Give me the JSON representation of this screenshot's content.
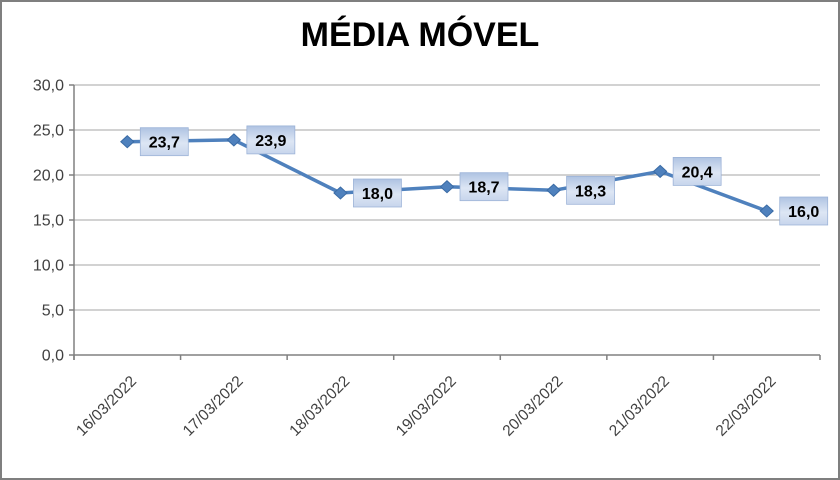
{
  "window": {
    "background": "#ffffff",
    "border_color": "#7f7f7f"
  },
  "chart_data": {
    "type": "line",
    "title": "MÉDIA MÓVEL",
    "categories": [
      "16/03/2022",
      "17/03/2022",
      "18/03/2022",
      "19/03/2022",
      "20/03/2022",
      "21/03/2022",
      "22/03/2022"
    ],
    "values": [
      23.7,
      23.9,
      18.0,
      18.7,
      18.3,
      20.4,
      16.0
    ],
    "data_labels": [
      "23,7",
      "23,9",
      "18,0",
      "18,7",
      "18,3",
      "20,4",
      "16,0"
    ],
    "y_tick_labels": [
      "0,0",
      "5,0",
      "10,0",
      "15,0",
      "20,0",
      "25,0",
      "30,0"
    ],
    "ylim": [
      0,
      30
    ],
    "y_step": 5,
    "xlabel": "",
    "ylabel": "",
    "grid": true,
    "legend": "none",
    "x_label_rotation_deg": -45,
    "colors": {
      "line": "#4F81BD",
      "marker": "#4F81BD",
      "marker_stroke": "#3A6BA5",
      "gridline": "#A6A6A6",
      "axis": "#808080",
      "axis_text": "#404040",
      "title_text": "#000000",
      "label_text": "#000000",
      "label_fill_top": "#AFC3E2",
      "label_fill_mid": "#DDE6F4",
      "label_fill_bottom": "#C7D5EC",
      "label_border": "#9AB1D6"
    }
  }
}
